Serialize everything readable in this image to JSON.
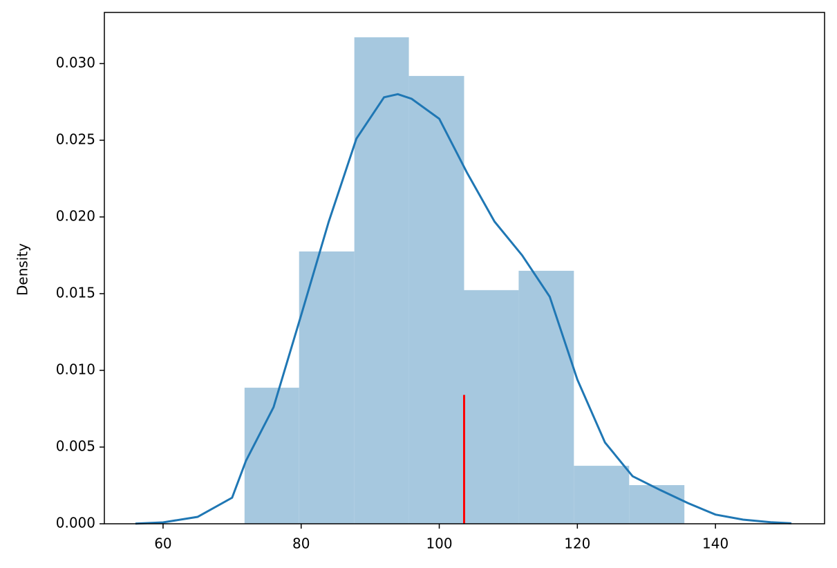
{
  "chart_data": {
    "type": "histogram",
    "y_label": "Density",
    "bins": [
      71.8,
      79.7,
      87.7,
      95.6,
      103.6,
      111.5,
      119.5,
      127.5,
      135.5
    ],
    "values": [
      0.00887,
      0.01775,
      0.03171,
      0.02919,
      0.01523,
      0.01649,
      0.00378,
      0.00252
    ],
    "color": "#a6c8df",
    "kde": {
      "color": "#1f77b4",
      "x": [
        56,
        60,
        65,
        70,
        72,
        76,
        80,
        84,
        88,
        92,
        94,
        96,
        100,
        104,
        108,
        112,
        116,
        120,
        124,
        128,
        132,
        136,
        140,
        144,
        148,
        151
      ],
      "values": [
        1e-05,
        9e-05,
        0.00045,
        0.0017,
        0.0041,
        0.0076,
        0.0136,
        0.0197,
        0.0251,
        0.0278,
        0.028,
        0.0277,
        0.0264,
        0.0229,
        0.0197,
        0.0175,
        0.0148,
        0.0094,
        0.0053,
        0.0031,
        0.0022,
        0.00135,
        0.0006,
        0.00027,
        0.0001,
        3e-05
      ]
    },
    "vline": {
      "x": 103.6,
      "ymax": 0.0084,
      "color": "#ff0000"
    },
    "xlim": [
      51.5,
      155.8
    ],
    "ylim": [
      0,
      0.03333
    ],
    "xticks": [
      60,
      80,
      100,
      120,
      140
    ],
    "yticks": [
      {
        "value": 0,
        "label": "0.000"
      },
      {
        "value": 0.005,
        "label": "0.005"
      },
      {
        "value": 0.01,
        "label": "0.010"
      },
      {
        "value": 0.015,
        "label": "0.015"
      },
      {
        "value": 0.02,
        "label": "0.020"
      },
      {
        "value": 0.025,
        "label": "0.025"
      },
      {
        "value": 0.03,
        "label": "0.030"
      }
    ]
  }
}
